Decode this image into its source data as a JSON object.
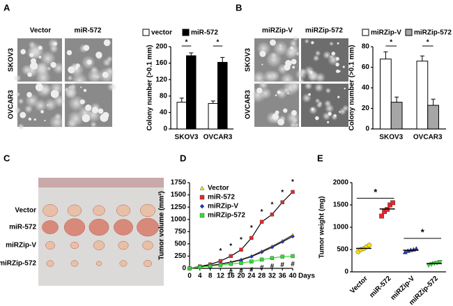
{
  "photos": [
    {
      "panel": "A",
      "columns": [
        "Vector",
        "miR-572"
      ],
      "rows": [
        "SKOV3",
        "OVCAR3"
      ]
    },
    {
      "panel": "B",
      "columns": [
        "miRZip-V",
        "miRZip-572"
      ],
      "rows": [
        "SKOV3",
        "OVCAR3"
      ]
    },
    {
      "panel": "C",
      "rows": [
        "Vector",
        "miR-572",
        "miRZip-V",
        "miRZip-572"
      ]
    }
  ],
  "chart_data": [
    {
      "type": "bar",
      "ylabel": "Colony number (>0.1 mm)",
      "categories": [
        "SKOV3",
        "OVCAR3"
      ],
      "series": [
        {
          "name": "vector",
          "color": "#ffffff",
          "values": [
            65,
            62
          ],
          "errors": [
            10,
            6
          ]
        },
        {
          "name": "miR-572",
          "color": "#000000",
          "values": [
            178,
            162
          ],
          "errors": [
            7,
            12
          ]
        }
      ],
      "ylim": [
        0,
        200
      ],
      "yticks": [
        0,
        40,
        80,
        120,
        160,
        200
      ],
      "significance": "*"
    },
    {
      "type": "bar",
      "ylabel": "Colony number (>0.1 mm)",
      "categories": [
        "SKOV3",
        "OVCAR3"
      ],
      "series": [
        {
          "name": "miRZip-V",
          "color": "#ffffff",
          "values": [
            68,
            66
          ],
          "errors": [
            7,
            5
          ]
        },
        {
          "name": "miRZip-572",
          "color": "#a6a6a6",
          "values": [
            26,
            23
          ],
          "errors": [
            5,
            6
          ]
        }
      ],
      "ylim": [
        0,
        80
      ],
      "yticks": [
        0,
        20,
        40,
        60,
        80
      ],
      "significance": "*"
    },
    {
      "type": "line",
      "panel": "D",
      "ylabel": "Tumor volume (mm³)",
      "xlabel": "Days",
      "x": [
        0,
        4,
        8,
        12,
        16,
        20,
        24,
        28,
        32,
        36,
        40
      ],
      "series": [
        {
          "name": "Vector",
          "color": "#f5e000",
          "marker": "triangle",
          "values": [
            0,
            30,
            60,
            90,
            130,
            180,
            250,
            350,
            450,
            560,
            680
          ]
        },
        {
          "name": "miR-572",
          "color": "#e8262a",
          "marker": "square",
          "values": [
            0,
            40,
            80,
            150,
            250,
            380,
            620,
            950,
            1100,
            1350,
            1560
          ]
        },
        {
          "name": "miRZip-V",
          "color": "#2233cc",
          "marker": "diamond",
          "values": [
            0,
            30,
            55,
            85,
            120,
            170,
            240,
            330,
            430,
            540,
            650
          ]
        },
        {
          "name": "miRZip-572",
          "color": "#33dd33",
          "marker": "square",
          "values": [
            0,
            25,
            45,
            65,
            90,
            110,
            140,
            180,
            210,
            240,
            250
          ]
        }
      ],
      "xlim": [
        0,
        40
      ],
      "xticks": [
        0,
        4,
        8,
        12,
        16,
        20,
        24,
        28,
        32,
        36,
        40
      ],
      "ylim": [
        0,
        1750
      ],
      "yticks": [
        0,
        250,
        500,
        750,
        1000,
        1250,
        1500,
        1750
      ],
      "star": "*",
      "star_x": [
        12,
        16,
        20,
        24,
        28,
        32,
        36,
        40
      ],
      "hash": "#",
      "hash_x": [
        16,
        20,
        24,
        28,
        32,
        36,
        40
      ]
    },
    {
      "type": "dot",
      "panel": "E",
      "ylabel": "Tumor weight (mg)",
      "series": [
        {
          "name": "Vector",
          "color": "#f5e000",
          "marker": "circle",
          "values": [
            450,
            500,
            520,
            560,
            600
          ],
          "mean": 525
        },
        {
          "name": "miR-572",
          "color": "#e8262a",
          "marker": "square",
          "values": [
            1250,
            1350,
            1400,
            1500,
            1550
          ],
          "mean": 1410
        },
        {
          "name": "miRZip-V",
          "color": "#2233cc",
          "marker": "triangle",
          "values": [
            440,
            470,
            490,
            500,
            520
          ],
          "mean": 485
        },
        {
          "name": "miRZip-572",
          "color": "#33dd33",
          "marker": "triangle-down",
          "values": [
            150,
            170,
            190,
            200,
            220
          ],
          "mean": 185
        }
      ],
      "ylim": [
        0,
        2000
      ],
      "yticks": [
        0,
        500,
        1000,
        1500,
        2000
      ],
      "significance": "*"
    }
  ]
}
